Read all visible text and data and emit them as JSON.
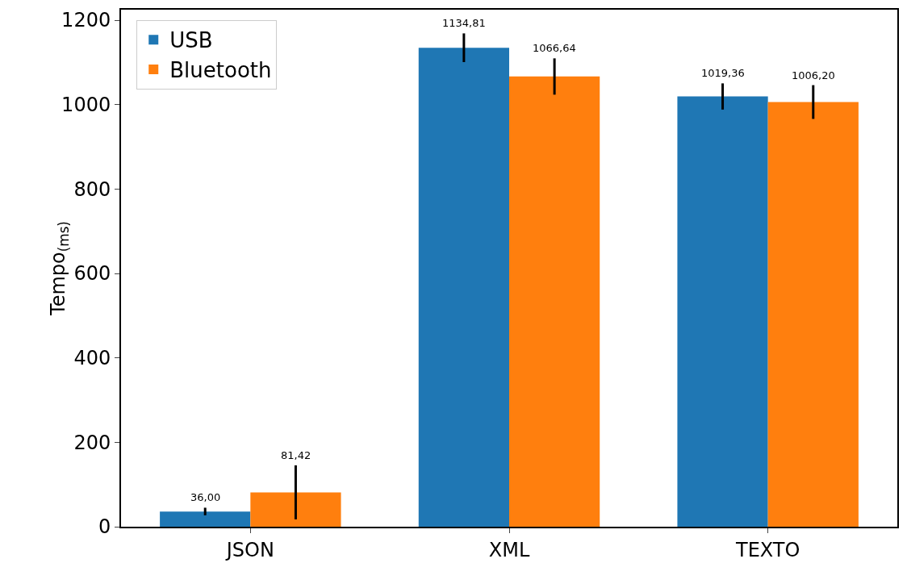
{
  "chart_data": {
    "type": "bar",
    "ylabel": "Tempo$_{(ms)}$",
    "categories": [
      "JSON",
      "XML",
      "TEXTO"
    ],
    "series": [
      {
        "name": "USB",
        "color": "#1f77b4",
        "values": [
          36.0,
          1134.81,
          1019.36
        ],
        "errors": [
          9,
          34,
          31
        ],
        "value_labels": [
          "36,00",
          "1134,81",
          "1019,36"
        ]
      },
      {
        "name": "Bluetooth",
        "color": "#ff7f0e",
        "values": [
          81.42,
          1066.64,
          1006.2
        ],
        "errors": [
          64,
          43,
          40
        ],
        "value_labels": [
          "81,42",
          "1066,64",
          "1006,20"
        ]
      }
    ],
    "ylim": [
      0,
      1225
    ],
    "yticks": [
      0,
      200,
      400,
      600,
      800,
      1000,
      1200
    ],
    "grid": false,
    "legend": "top left"
  }
}
